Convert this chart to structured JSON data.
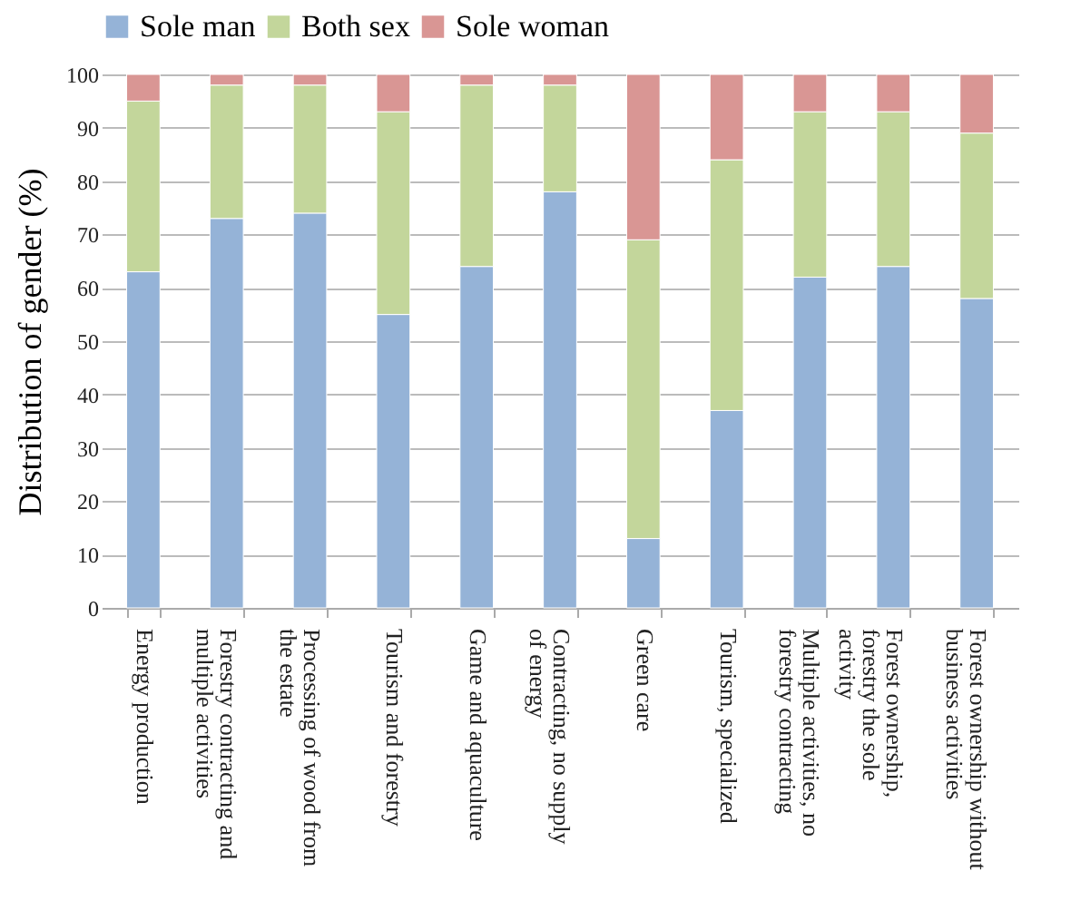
{
  "chart_data": {
    "type": "bar",
    "stacked": true,
    "ylabel": "Distribution of gender (%)",
    "categories": [
      "Energy production",
      "Forestry contracting and multiple activities",
      "Processing of wood from the estate",
      "Tourism and forestry",
      "Game and aquaculture",
      "Contracting, no supply of energy",
      "Green care",
      "Tourism, specialized",
      "Multiple activities, no forestry contracting",
      "Forest ownership, forestry the sole activity",
      "Forest ownership without business activities"
    ],
    "series": [
      {
        "name": "Sole man",
        "color": "#95b3d7",
        "values": [
          63,
          73,
          74,
          55,
          64,
          78,
          13,
          37,
          62,
          64,
          58
        ]
      },
      {
        "name": "Both sex",
        "color": "#c3d69b",
        "values": [
          32,
          25,
          24,
          38,
          34,
          20,
          56,
          47,
          31,
          29,
          31
        ]
      },
      {
        "name": "Sole woman",
        "color": "#d99694",
        "values": [
          5,
          2,
          2,
          7,
          2,
          2,
          31,
          16,
          7,
          7,
          11
        ]
      }
    ],
    "ylim": [
      0,
      100
    ],
    "yticks": [
      0,
      10,
      20,
      30,
      40,
      50,
      60,
      70,
      80,
      90,
      100
    ],
    "grid": "y",
    "legend": "top"
  }
}
